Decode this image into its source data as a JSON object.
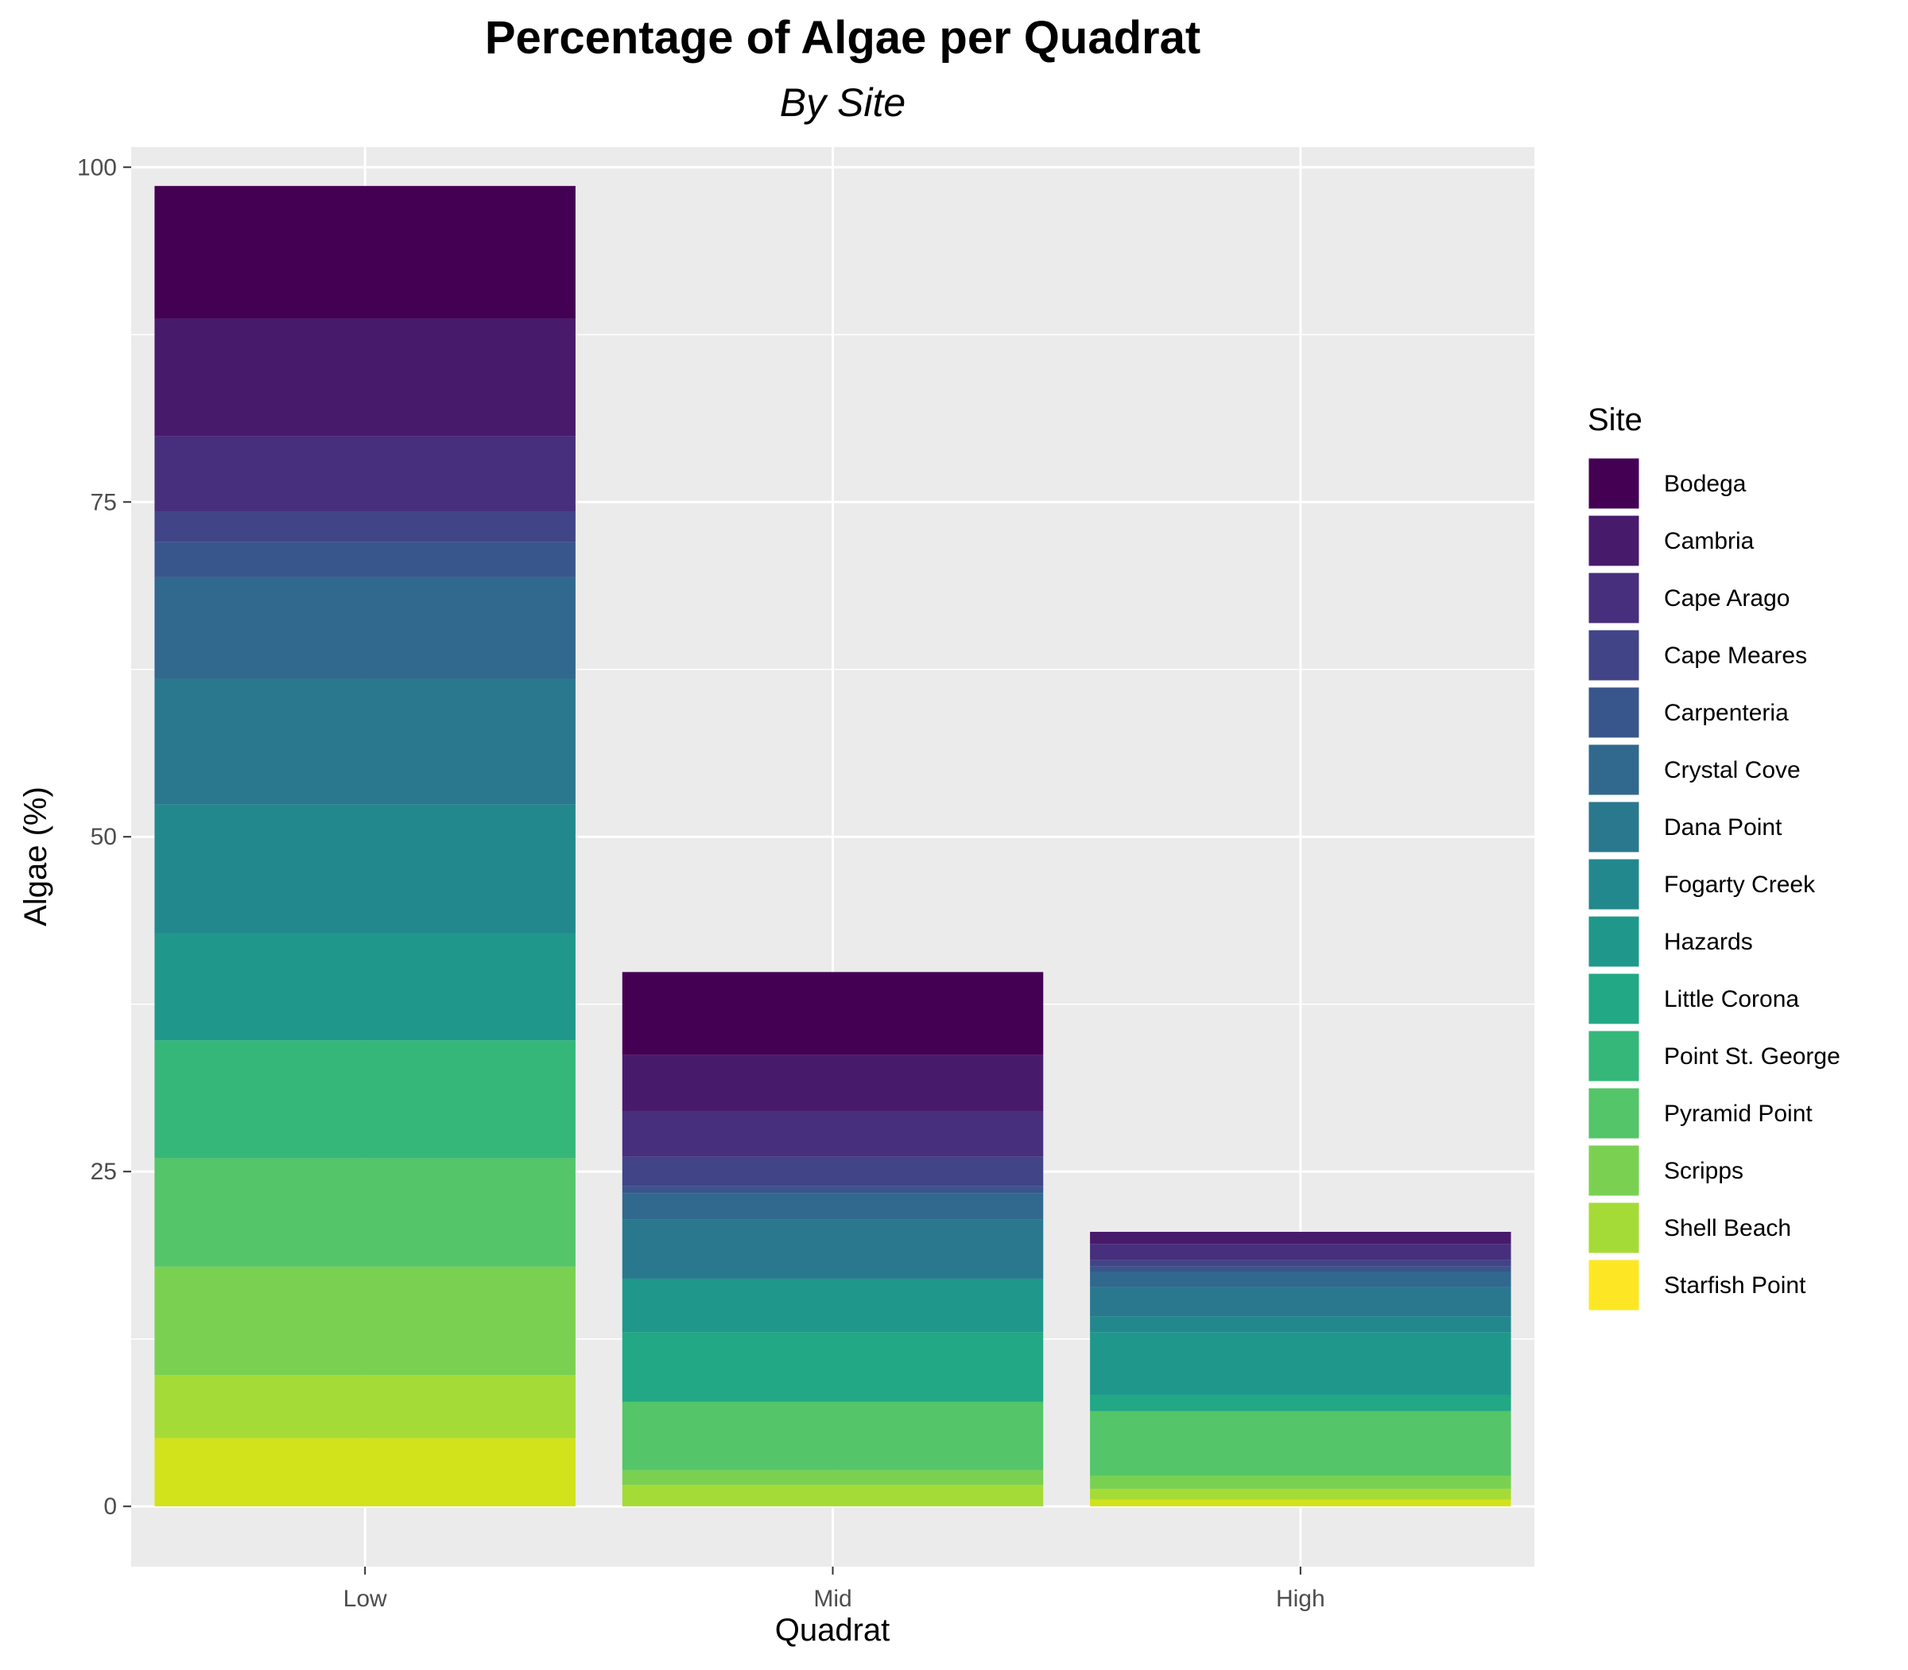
{
  "chart_data": {
    "type": "bar",
    "stacked": true,
    "title": "Percentage of Algae per Quadrat",
    "subtitle": "By Site",
    "xlabel": "Quadrat",
    "ylabel": "Algae (%)",
    "categories": [
      "Low",
      "Mid",
      "High"
    ],
    "ylim": [
      -4.5,
      101.5
    ],
    "yticks": [
      0,
      25,
      50,
      75,
      100
    ],
    "grid": true,
    "legend": {
      "title": "Site",
      "position": "right"
    },
    "series": [
      {
        "name": "Bodega",
        "color": "#440154",
        "values": [
          9.9,
          6.2,
          0.0
        ]
      },
      {
        "name": "Cambria",
        "color": "#481A6C",
        "values": [
          8.8,
          4.2,
          0.9
        ]
      },
      {
        "name": "Cape Arago",
        "color": "#472F7D",
        "values": [
          5.6,
          3.4,
          1.2
        ]
      },
      {
        "name": "Cape Meares",
        "color": "#414487",
        "values": [
          2.3,
          2.2,
          0.5
        ]
      },
      {
        "name": "Carpenteria",
        "color": "#39568C",
        "values": [
          2.6,
          0.5,
          0.4
        ]
      },
      {
        "name": "Crystal Cove",
        "color": "#31688E",
        "values": [
          7.6,
          2.0,
          1.1
        ]
      },
      {
        "name": "Dana Point",
        "color": "#2A788E",
        "values": [
          9.4,
          4.4,
          2.2
        ]
      },
      {
        "name": "Fogarty Creek",
        "color": "#23888E",
        "values": [
          9.6,
          0.0,
          1.2
        ]
      },
      {
        "name": "Hazards",
        "color": "#1F988B",
        "values": [
          8.0,
          4.0,
          4.7
        ]
      },
      {
        "name": "Little Corona",
        "color": "#22A884",
        "values": [
          0.0,
          5.2,
          1.2
        ]
      },
      {
        "name": "Point St. George",
        "color": "#35B779",
        "values": [
          8.8,
          0.0,
          0.0
        ]
      },
      {
        "name": "Pyramid Point",
        "color": "#54C568",
        "values": [
          8.1,
          5.1,
          4.8
        ]
      },
      {
        "name": "Scripps",
        "color": "#7AD151",
        "values": [
          8.1,
          1.1,
          1.0
        ]
      },
      {
        "name": "Shell Beach",
        "color": "#A5DB36",
        "values": [
          4.7,
          1.6,
          0.8
        ]
      },
      {
        "name": "Starfish Point",
        "color": "#D2E21B",
        "values": [
          5.1,
          0.0,
          0.5
        ]
      },
      {
        "name": "Starfish Point",
        "color": "#FDE725",
        "values": [
          0.0,
          0.0,
          0.0
        ],
        "legend_only": false
      }
    ]
  }
}
